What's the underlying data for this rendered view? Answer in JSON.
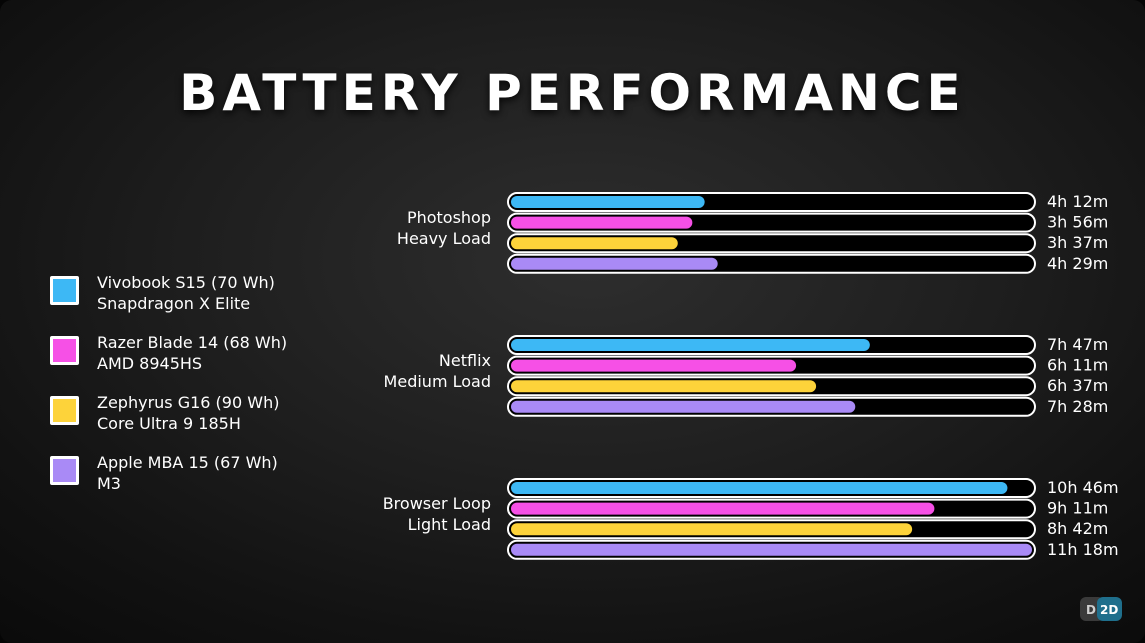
{
  "chart_data": {
    "type": "bar",
    "orientation": "horizontal",
    "title": "BATTERY PERFORMANCE",
    "unit": "hours",
    "xlim": [
      0,
      11.3
    ],
    "grid": false,
    "legend_placement": "left",
    "categories": [
      {
        "lines": [
          "Photoshop",
          "Heavy Load"
        ]
      },
      {
        "lines": [
          "Netflix",
          "Medium Load"
        ]
      },
      {
        "lines": [
          "Browser Loop",
          "Light Load"
        ]
      }
    ],
    "series": [
      {
        "name": "Vivobook S15 (70 Wh)",
        "subtitle": "Snapdragon X Elite",
        "color": "#3db8f5",
        "values": [
          4.2,
          7.783,
          10.767
        ],
        "labels": [
          "4h 12m",
          "7h 47m",
          "10h 46m"
        ]
      },
      {
        "name": "Razer Blade 14 (68 Wh)",
        "subtitle": "AMD 8945HS",
        "color": "#f650e6",
        "values": [
          3.933,
          6.183,
          9.183
        ],
        "labels": [
          "3h 56m",
          "6h 11m",
          "9h 11m"
        ]
      },
      {
        "name": "Zephyrus G16 (90 Wh)",
        "subtitle": "Core Ultra 9 185H",
        "color": "#fdd33a",
        "values": [
          3.617,
          6.617,
          8.7
        ],
        "labels": [
          "3h 37m",
          "6h 37m",
          "8h 42m"
        ]
      },
      {
        "name": "Apple MBA 15 (67 Wh)",
        "subtitle": "M3",
        "color": "#a98af6",
        "values": [
          4.483,
          7.467,
          11.3
        ],
        "labels": [
          "4h 29m",
          "7h 28m",
          "11h 18m"
        ]
      }
    ]
  },
  "logo": {
    "name": "d2d-logo-icon",
    "left": "D",
    "right": "2D"
  }
}
